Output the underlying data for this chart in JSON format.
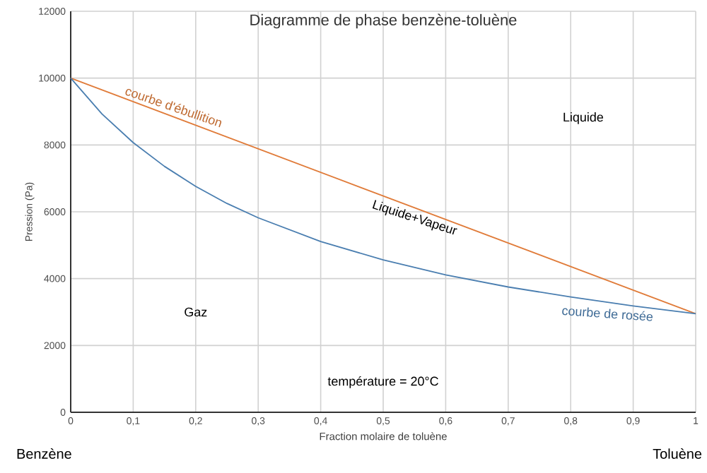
{
  "chart_data": {
    "type": "line",
    "title": "Diagramme de phase benzène-toluène",
    "xlabel": "Fraction molaire de toluène",
    "ylabel": "Pression (Pa)",
    "series": [
      {
        "name": "courbe d'ébullition",
        "color": "#e07b39",
        "x": [
          0,
          1
        ],
        "values": [
          10000,
          2950
        ]
      },
      {
        "name": "courbe de rosée",
        "color": "#4a7eb0",
        "x": [
          0,
          0.05,
          0.1,
          0.15,
          0.2,
          0.25,
          0.3,
          0.4,
          0.5,
          0.6,
          0.7,
          0.8,
          0.9,
          1
        ],
        "values": [
          10000,
          8930,
          8070,
          7360,
          6760,
          6250,
          5820,
          5110,
          4560,
          4110,
          3750,
          3450,
          3180,
          2950
        ]
      }
    ],
    "xlim": [
      0,
      1
    ],
    "ylim": [
      0,
      12000
    ],
    "xticks": [
      0,
      {
        "value": 0.1,
        "label": "0,1"
      },
      {
        "value": 0.2,
        "label": "0,2"
      },
      {
        "value": 0.3,
        "label": "0,3"
      },
      {
        "value": 0.4,
        "label": "0,4"
      },
      {
        "value": 0.5,
        "label": "0,5"
      },
      {
        "value": 0.6,
        "label": "0,6"
      },
      {
        "value": 0.7,
        "label": "0,7"
      },
      {
        "value": 0.8,
        "label": "0,8"
      },
      {
        "value": 0.9,
        "label": "0,9"
      },
      1
    ],
    "yticks": [
      0,
      2000,
      4000,
      6000,
      8000,
      10000,
      12000
    ],
    "grid": true,
    "legend": false,
    "marker": "none",
    "line_style": "solid",
    "annotations": [
      "Liquide",
      "Liquide+Vapeur",
      "Gaz",
      "température = 20°C",
      "Benzène",
      "Toluène"
    ]
  }
}
